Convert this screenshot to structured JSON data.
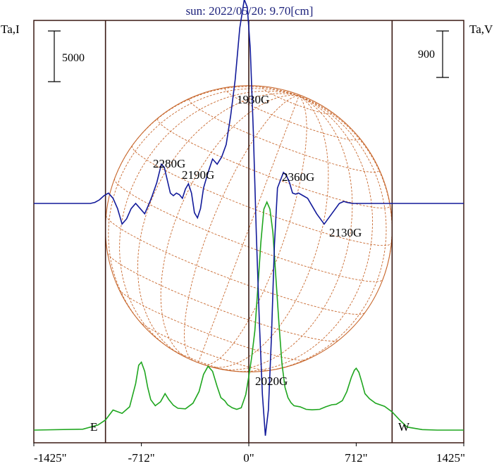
{
  "chart_data": {
    "type": "line",
    "title": "sun: 2022/05/20: 9.70[cm]",
    "y_left_label": "Ta,I",
    "y_right_label": "Ta,V",
    "scale_left_label": "5000",
    "scale_right_label": "900",
    "x_tick_labels": [
      "-1425\"",
      "-712\"",
      "0\"",
      "712\"",
      "1425\""
    ],
    "x_ticks": [
      -1425,
      -712,
      0,
      712,
      1425
    ],
    "xlim": [
      -1425,
      1425
    ],
    "limb_labels": {
      "east": "E",
      "west": "W"
    },
    "solar_radius_arcsec": 950,
    "vertical_lines_arcsec": [
      -950,
      0,
      950
    ],
    "colors": {
      "stokes_i": "#1fa61f",
      "stokes_v": "#121a9a",
      "sun_grid": "#c8682e",
      "lines": "#3a1a14",
      "title": "#1a1f7a"
    },
    "series": [
      {
        "name": "Ta,I",
        "x": [
          -1425,
          -1100,
          -1000,
          -950,
          -900,
          -840,
          -790,
          -750,
          -730,
          -712,
          -690,
          -670,
          -650,
          -620,
          -585,
          -555,
          -530,
          -500,
          -470,
          -420,
          -370,
          -330,
          -300,
          -270,
          -240,
          -210,
          -185,
          -160,
          -140,
          -110,
          -80,
          -50,
          -20,
          0,
          20,
          40,
          60,
          80,
          100,
          120,
          140,
          160,
          180,
          200,
          220,
          240,
          260,
          280,
          300,
          340,
          380,
          420,
          470,
          510,
          550,
          580,
          620,
          650,
          680,
          700,
          712,
          730,
          750,
          770,
          800,
          840,
          900,
          950,
          1000,
          1050,
          1150,
          1250,
          1350,
          1425
        ],
        "y": [
          0,
          90,
          500,
          1000,
          1980,
          1650,
          2300,
          4600,
          6400,
          6700,
          5800,
          4200,
          3000,
          2400,
          2800,
          3600,
          3000,
          2450,
          2150,
          2100,
          2650,
          3800,
          5500,
          6300,
          5800,
          4300,
          3200,
          2900,
          2500,
          2200,
          2050,
          2200,
          3500,
          5300,
          7300,
          9800,
          14000,
          18500,
          21800,
          22500,
          21800,
          19500,
          15000,
          10500,
          6500,
          4200,
          3200,
          2700,
          2400,
          2300,
          2050,
          2000,
          2050,
          2300,
          2500,
          2550,
          2900,
          3800,
          5200,
          5900,
          6100,
          5700,
          4700,
          3600,
          3100,
          2650,
          2350,
          1800,
          1000,
          300,
          50,
          0,
          0,
          0
        ]
      },
      {
        "name": "Ta,V",
        "x": [
          -1425,
          -1050,
          -1020,
          -990,
          -960,
          -930,
          -900,
          -870,
          -840,
          -810,
          -780,
          -750,
          -720,
          -690,
          -660,
          -640,
          -610,
          -580,
          -560,
          -540,
          -520,
          -500,
          -480,
          -460,
          -440,
          -420,
          -400,
          -380,
          -360,
          -340,
          -320,
          -300,
          -270,
          -240,
          -210,
          -180,
          -150,
          -120,
          -90,
          -60,
          -30,
          -10,
          10,
          30,
          50,
          70,
          90,
          110,
          130,
          150,
          170,
          190,
          210,
          230,
          250,
          270,
          290,
          310,
          330,
          360,
          390,
          420,
          450,
          500,
          550,
          600,
          630,
          650,
          670,
          690,
          720,
          760,
          800,
          860,
          940,
          1000,
          1100,
          1425
        ],
        "y": [
          0,
          0,
          20,
          70,
          150,
          200,
          100,
          -100,
          -400,
          -300,
          -100,
          0,
          -100,
          -200,
          0,
          150,
          400,
          760,
          700,
          450,
          200,
          150,
          200,
          170,
          100,
          280,
          380,
          200,
          -180,
          -280,
          -100,
          300,
          600,
          860,
          760,
          900,
          1140,
          1700,
          2400,
          3400,
          3950,
          3800,
          3000,
          1400,
          -600,
          -2300,
          -3700,
          -4500,
          -4000,
          -2600,
          -800,
          300,
          450,
          600,
          540,
          400,
          200,
          180,
          200,
          150,
          100,
          -50,
          -200,
          -400,
          -200,
          0,
          40,
          20,
          10,
          0,
          0,
          0,
          0,
          0,
          0,
          0,
          0,
          0
        ]
      }
    ],
    "annotations": [
      {
        "text": "1930G"
      },
      {
        "text": "2280G"
      },
      {
        "text": "2190G"
      },
      {
        "text": "2360G"
      },
      {
        "text": "2130G"
      },
      {
        "text": "2020G"
      }
    ]
  }
}
